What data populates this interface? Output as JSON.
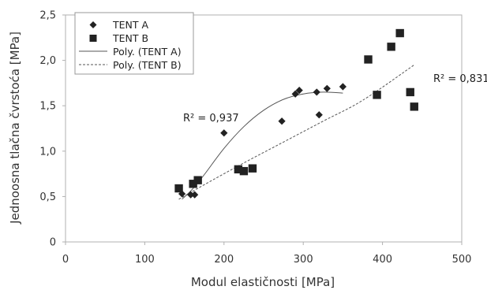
{
  "chart_data": {
    "type": "scatter",
    "xlabel": "Modul elastičnosti [MPa]",
    "ylabel": "Jednoosna tlačna čvrstoća [MPa]",
    "xlim": [
      0,
      500
    ],
    "ylim": [
      0,
      2.5
    ],
    "xticks": [
      0,
      100,
      200,
      300,
      400,
      500
    ],
    "xtick_labels": [
      "0",
      "100",
      "200",
      "300",
      "400",
      "500"
    ],
    "yticks": [
      0,
      0.5,
      1.0,
      1.5,
      2.0,
      2.5
    ],
    "ytick_labels": [
      "0",
      "0,5",
      "1,0",
      "1,5",
      "2,0",
      "2,5"
    ],
    "grid": false,
    "legend_position": "top-left",
    "series": [
      {
        "name": "TENT A",
        "marker": "diamond",
        "color": "#222222",
        "x": [
          147,
          158,
          163,
          200,
          273,
          290,
          295,
          317,
          320,
          330,
          350
        ],
        "y": [
          0.53,
          0.52,
          0.52,
          1.2,
          1.33,
          1.63,
          1.67,
          1.65,
          1.4,
          1.69,
          1.71
        ]
      },
      {
        "name": "TENT B",
        "marker": "square",
        "color": "#222222",
        "x": [
          143,
          161,
          167,
          218,
          225,
          236,
          382,
          393,
          411,
          422,
          435,
          440
        ],
        "y": [
          0.59,
          0.64,
          0.68,
          0.8,
          0.78,
          0.81,
          2.01,
          1.62,
          2.15,
          2.3,
          1.65,
          1.49
        ]
      }
    ],
    "trendlines": [
      {
        "name": "Poly. (TENT A)",
        "style": "solid",
        "color": "#555555",
        "x": [
          147,
          160,
          175,
          200,
          225,
          250,
          275,
          300,
          325,
          350
        ],
        "y": [
          0.47,
          0.58,
          0.74,
          1.03,
          1.27,
          1.45,
          1.57,
          1.63,
          1.65,
          1.64
        ],
        "r2_label": "R² = 0,937"
      },
      {
        "name": "Poly. (TENT B)",
        "style": "dashed",
        "color": "#555555",
        "x": [
          143,
          175,
          225,
          275,
          325,
          375,
          440
        ],
        "y": [
          0.47,
          0.63,
          0.87,
          1.1,
          1.33,
          1.56,
          1.95
        ],
        "r2_label": "R² = 0,831"
      }
    ]
  }
}
